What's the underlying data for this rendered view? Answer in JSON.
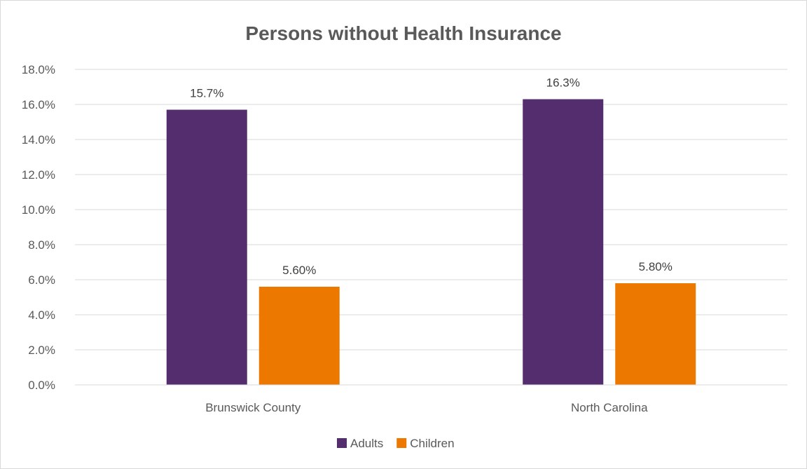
{
  "chart_data": {
    "type": "bar",
    "title": "Persons without Health Insurance",
    "categories": [
      "Brunswick County",
      "North Carolina"
    ],
    "series": [
      {
        "name": "Adults",
        "values": [
          15.7,
          16.3
        ],
        "labels": [
          "15.7%",
          "16.3%"
        ],
        "color": "#532d6d"
      },
      {
        "name": "Children",
        "values": [
          5.6,
          5.8
        ],
        "labels": [
          "5.60%",
          "5.80%"
        ],
        "color": "#ed7800"
      }
    ],
    "ylim": [
      0,
      18
    ],
    "yticks": [
      "0.0%",
      "2.0%",
      "4.0%",
      "6.0%",
      "8.0%",
      "10.0%",
      "12.0%",
      "14.0%",
      "16.0%",
      "18.0%"
    ],
    "xlabel": "",
    "ylabel": "",
    "grid": true,
    "legend_position": "bottom",
    "colors": {
      "gridline": "#d9d9d9",
      "text": "#595959"
    }
  }
}
